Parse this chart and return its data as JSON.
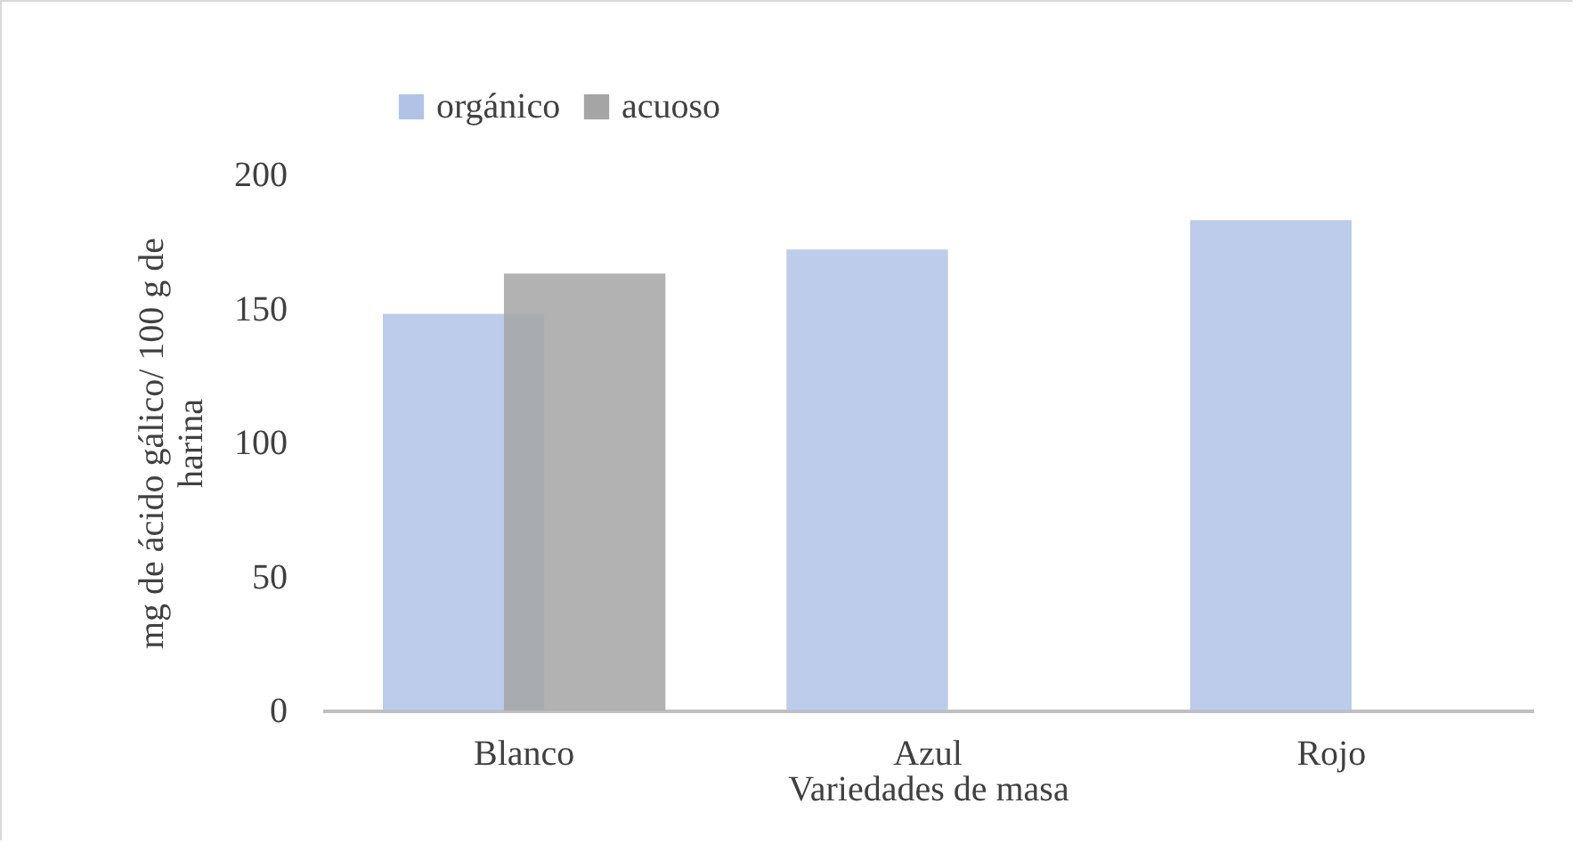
{
  "chart_data": {
    "type": "bar",
    "xlabel": "Variedades de masa",
    "ylabel": "mg de ácido gálico/ 100 g de harina",
    "categories": [
      "Blanco",
      "Azul",
      "Rojo"
    ],
    "series": [
      {
        "name": "orgánico",
        "color": "#b0c3e6",
        "values": [
          148,
          172,
          183
        ]
      },
      {
        "name": "acuoso",
        "color": "#a5a5a5",
        "values": [
          163,
          null,
          null
        ]
      }
    ],
    "ylim": [
      0,
      200
    ],
    "yticks": [
      0,
      50,
      100,
      150,
      200
    ],
    "grid": false,
    "legend": "top left"
  }
}
